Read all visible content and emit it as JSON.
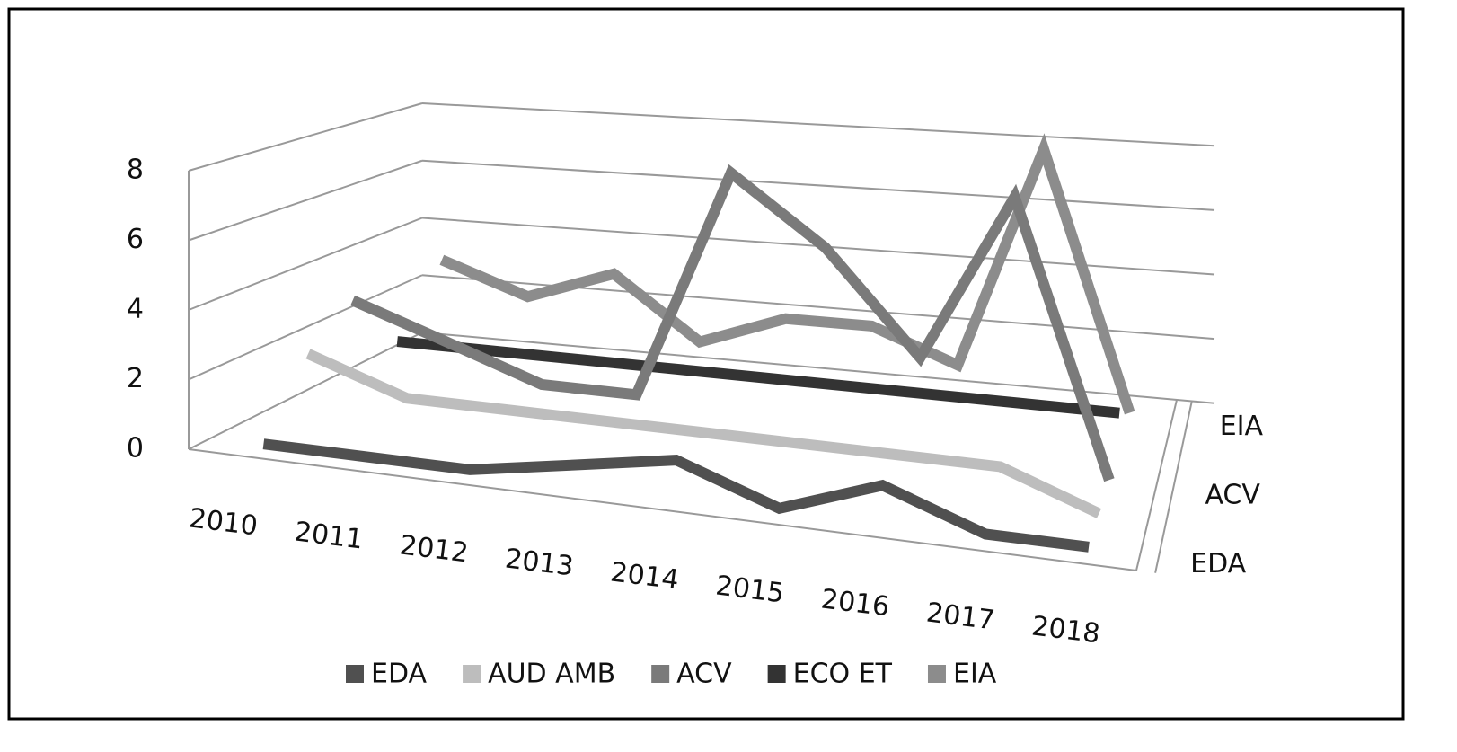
{
  "chart_data": {
    "type": "line3d",
    "categories": [
      "2010",
      "2011",
      "2012",
      "2013",
      "2014",
      "2015",
      "2016",
      "2017",
      "2018"
    ],
    "series": [
      {
        "name": "EDA",
        "color": "#505050",
        "values": [
          0,
          0,
          0,
          0.5,
          1,
          0,
          1,
          0,
          0
        ]
      },
      {
        "name": "AUD AMB",
        "color": "#bdbdbd",
        "values": [
          2,
          1,
          1,
          1,
          1,
          1,
          1,
          1,
          0
        ]
      },
      {
        "name": "ACV",
        "color": "#7a7a7a",
        "values": [
          3,
          2,
          1,
          1,
          8,
          6,
          3,
          8,
          0
        ]
      },
      {
        "name": "ECO ET",
        "color": "#333333",
        "values": [
          1,
          1,
          1,
          1,
          1,
          1,
          1,
          1,
          1
        ]
      },
      {
        "name": "EIA",
        "color": "#8c8c8c",
        "values": [
          3,
          2,
          3,
          1,
          2,
          2,
          1,
          8,
          0
        ]
      }
    ],
    "depth_labels": [
      "EDA",
      "ACV",
      "EIA"
    ],
    "ylim": [
      0,
      8
    ],
    "yticks": [
      0,
      2,
      4,
      6,
      8
    ],
    "grid": true,
    "legend": "bottom"
  }
}
